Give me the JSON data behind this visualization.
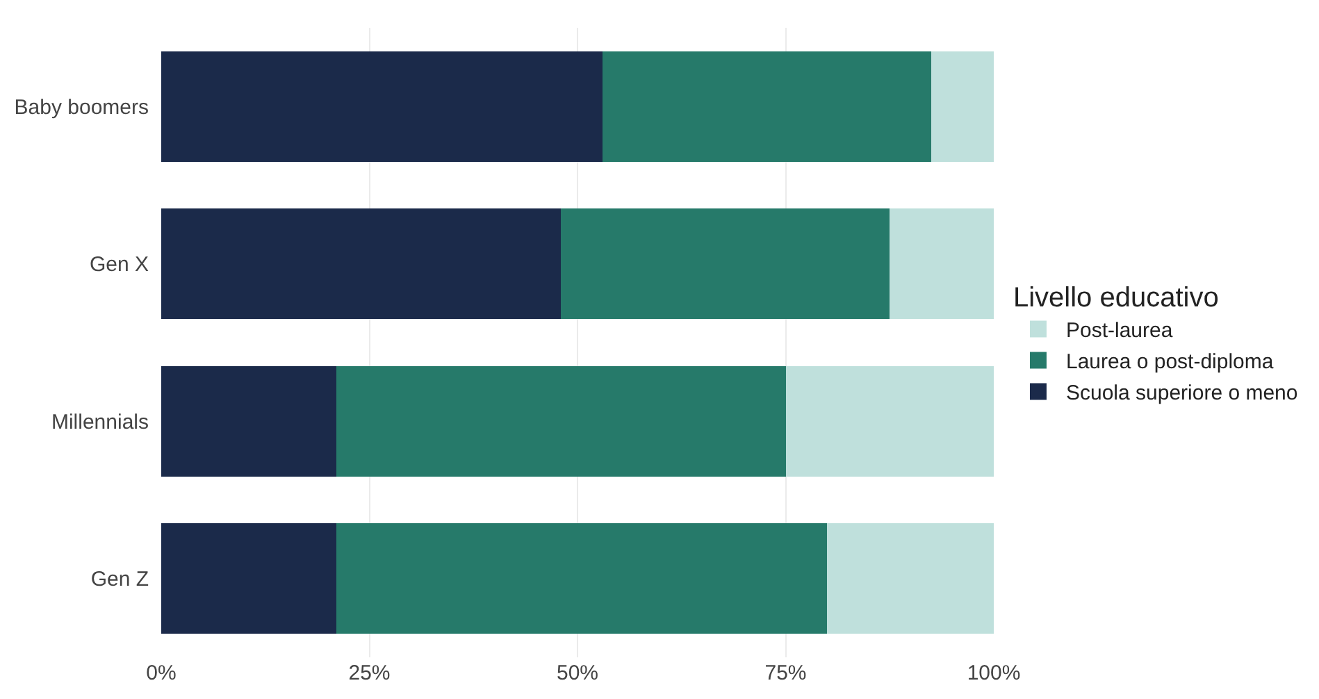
{
  "chart_data": {
    "type": "bar",
    "orientation": "horizontal",
    "stacked": true,
    "categories": [
      "Baby boomers",
      "Gen X",
      "Millennials",
      "Gen Z"
    ],
    "series": [
      {
        "name": "Scuola superiore o meno",
        "color": "#1b2a4a",
        "values": [
          53,
          48,
          21,
          21
        ]
      },
      {
        "name": "Laurea o post-diploma",
        "color": "#267a6a",
        "values": [
          39.5,
          39.5,
          54,
          59
        ]
      },
      {
        "name": "Post-laurea",
        "color": "#bfe0dc",
        "values": [
          7.5,
          12.5,
          25,
          20
        ]
      }
    ],
    "legend_title": "Livello educativo",
    "legend": "right",
    "grid": "x",
    "xlim": [
      0,
      100
    ],
    "xticks": [
      {
        "value": 0,
        "label": "0%"
      },
      {
        "value": 25,
        "label": "25%"
      },
      {
        "value": 50,
        "label": "50%"
      },
      {
        "value": 75,
        "label": "75%"
      },
      {
        "value": 100,
        "label": "100%"
      }
    ]
  }
}
